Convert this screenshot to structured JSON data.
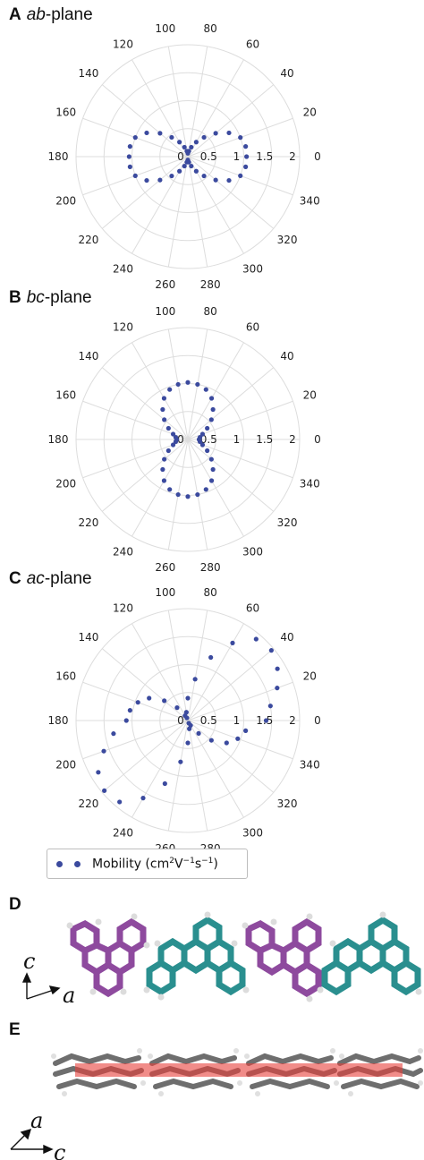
{
  "panels": [
    {
      "letter": "A",
      "plane_italic": "ab",
      "plane_suffix": "-plane"
    },
    {
      "letter": "B",
      "plane_italic": "bc",
      "plane_suffix": "-plane"
    },
    {
      "letter": "C",
      "plane_italic": "ac",
      "plane_suffix": "-plane"
    },
    {
      "letter": "D"
    },
    {
      "letter": "E"
    }
  ],
  "legend": {
    "marker_label": "Mobility (cm",
    "sup1": "2",
    "mid": "V",
    "sup2": "−1",
    "mid2": "s",
    "sup3": "−1",
    "end": ")"
  },
  "axes_labels": {
    "d_vertical": "c",
    "d_horizontal": "a",
    "e_vertical": "a",
    "e_horizontal": "c"
  },
  "colors": {
    "marker": "#3b4a9e",
    "grid": "#dddddd",
    "purple": "#8e4a9e",
    "teal": "#2a8f8f",
    "gray": "#6e6e6e",
    "red": "#e8403a"
  },
  "chart_data": [
    {
      "type": "scatter",
      "projection": "polar",
      "title": "ab-plane",
      "theta_ticks": [
        0,
        20,
        40,
        60,
        80,
        100,
        120,
        140,
        160,
        180,
        200,
        220,
        240,
        260,
        280,
        300,
        320,
        340
      ],
      "r_ticks": [
        0,
        0.5,
        1,
        1.5,
        2
      ],
      "rlim": [
        0,
        2
      ],
      "grid": true,
      "series": [
        {
          "name": "Mobility (cm²V⁻¹s⁻¹)",
          "points": [
            [
              0,
              1.05
            ],
            [
              10,
              1.05
            ],
            [
              20,
              1.0
            ],
            [
              30,
              0.85
            ],
            [
              40,
              0.65
            ],
            [
              50,
              0.45
            ],
            [
              60,
              0.3
            ],
            [
              70,
              0.18
            ],
            [
              80,
              0.1
            ],
            [
              90,
              0.06
            ],
            [
              100,
              0.1
            ],
            [
              110,
              0.18
            ],
            [
              120,
              0.3
            ],
            [
              130,
              0.45
            ],
            [
              140,
              0.65
            ],
            [
              150,
              0.85
            ],
            [
              160,
              1.0
            ],
            [
              170,
              1.05
            ],
            [
              180,
              1.05
            ],
            [
              190,
              1.05
            ],
            [
              200,
              1.0
            ],
            [
              210,
              0.85
            ],
            [
              220,
              0.65
            ],
            [
              230,
              0.45
            ],
            [
              240,
              0.3
            ],
            [
              250,
              0.18
            ],
            [
              260,
              0.1
            ],
            [
              270,
              0.06
            ],
            [
              280,
              0.1
            ],
            [
              290,
              0.18
            ],
            [
              300,
              0.3
            ],
            [
              310,
              0.45
            ],
            [
              320,
              0.65
            ],
            [
              330,
              0.85
            ],
            [
              340,
              1.0
            ],
            [
              350,
              1.05
            ]
          ]
        }
      ]
    },
    {
      "type": "scatter",
      "projection": "polar",
      "title": "bc-plane",
      "theta_ticks": [
        0,
        20,
        40,
        60,
        80,
        100,
        120,
        140,
        160,
        180,
        200,
        220,
        240,
        260,
        280,
        300,
        320,
        340
      ],
      "r_ticks": [
        0,
        0.5,
        1,
        1.5,
        2
      ],
      "rlim": [
        0,
        2
      ],
      "grid": true,
      "series": [
        {
          "name": "Mobility (cm²V⁻¹s⁻¹)",
          "points": [
            [
              0,
              0.2
            ],
            [
              10,
              0.22
            ],
            [
              20,
              0.28
            ],
            [
              30,
              0.4
            ],
            [
              40,
              0.55
            ],
            [
              50,
              0.7
            ],
            [
              60,
              0.85
            ],
            [
              70,
              0.95
            ],
            [
              80,
              1.0
            ],
            [
              90,
              1.02
            ],
            [
              100,
              1.0
            ],
            [
              110,
              0.95
            ],
            [
              120,
              0.85
            ],
            [
              130,
              0.7
            ],
            [
              140,
              0.55
            ],
            [
              150,
              0.4
            ],
            [
              160,
              0.28
            ],
            [
              170,
              0.22
            ],
            [
              180,
              0.2
            ],
            [
              190,
              0.22
            ],
            [
              200,
              0.28
            ],
            [
              210,
              0.4
            ],
            [
              220,
              0.55
            ],
            [
              230,
              0.7
            ],
            [
              240,
              0.85
            ],
            [
              250,
              0.95
            ],
            [
              260,
              1.0
            ],
            [
              270,
              1.02
            ],
            [
              280,
              1.0
            ],
            [
              290,
              0.95
            ],
            [
              300,
              0.85
            ],
            [
              310,
              0.7
            ],
            [
              320,
              0.55
            ],
            [
              330,
              0.4
            ],
            [
              340,
              0.28
            ],
            [
              350,
              0.22
            ]
          ]
        }
      ]
    },
    {
      "type": "scatter",
      "projection": "polar",
      "title": "ac-plane",
      "theta_ticks": [
        0,
        20,
        40,
        60,
        80,
        100,
        120,
        140,
        160,
        180,
        200,
        220,
        240,
        260,
        280,
        300,
        320,
        340
      ],
      "r_ticks": [
        0,
        0.5,
        1,
        1.5,
        2
      ],
      "rlim": [
        0,
        2
      ],
      "grid": true,
      "series": [
        {
          "name": "Mobility (cm²V⁻¹s⁻¹)",
          "points": [
            [
              0,
              1.4
            ],
            [
              10,
              1.5
            ],
            [
              20,
              1.7
            ],
            [
              30,
              1.85
            ],
            [
              40,
              1.95
            ],
            [
              50,
              1.9
            ],
            [
              60,
              1.6
            ],
            [
              70,
              1.2
            ],
            [
              80,
              0.75
            ],
            [
              90,
              0.4
            ],
            [
              100,
              0.15
            ],
            [
              110,
              0.05
            ],
            [
              120,
              0.1
            ],
            [
              130,
              0.3
            ],
            [
              140,
              0.55
            ],
            [
              150,
              0.8
            ],
            [
              160,
              0.95
            ],
            [
              170,
              1.05
            ],
            [
              180,
              1.1
            ],
            [
              190,
              1.35
            ],
            [
              200,
              1.6
            ],
            [
              210,
              1.85
            ],
            [
              220,
              1.95
            ],
            [
              230,
              1.9
            ],
            [
              240,
              1.6
            ],
            [
              250,
              1.2
            ],
            [
              260,
              0.75
            ],
            [
              270,
              0.4
            ],
            [
              280,
              0.15
            ],
            [
              290,
              0.05
            ],
            [
              300,
              0.1
            ],
            [
              310,
              0.3
            ],
            [
              320,
              0.55
            ],
            [
              330,
              0.8
            ],
            [
              340,
              0.95
            ],
            [
              350,
              1.05
            ]
          ]
        }
      ]
    }
  ]
}
